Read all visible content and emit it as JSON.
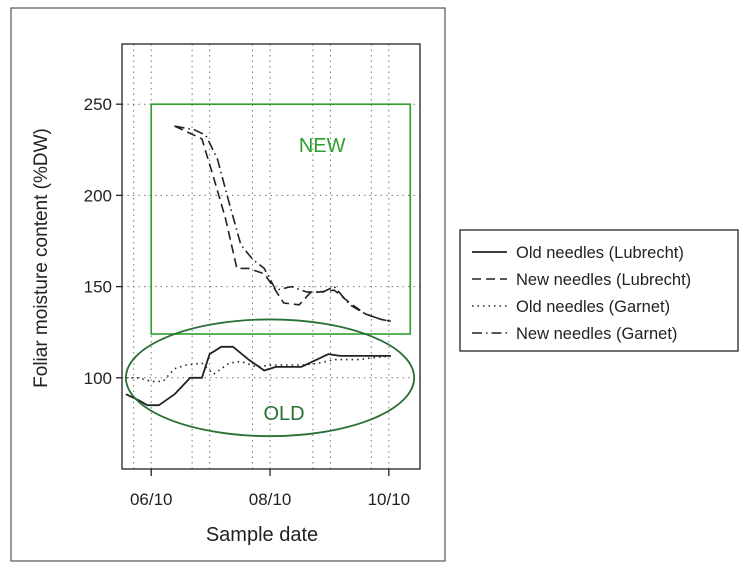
{
  "chart_data": {
    "type": "line",
    "xlabel": "Sample date",
    "ylabel": "Foliar moisture content (%DW)",
    "x_ticks": [
      "06/10",
      "08/10",
      "10/10"
    ],
    "y_ticks": [
      100,
      150,
      200,
      250
    ],
    "xlim": [
      "05/26",
      "10/26"
    ],
    "ylim": [
      50,
      283
    ],
    "grid": true,
    "legend_position": "right",
    "series": [
      {
        "name": "Old needles (Lubrecht)",
        "style": "solid",
        "x": [
          "05/28",
          "06/03",
          "06/08",
          "06/14",
          "06/22",
          "06/30",
          "07/06",
          "07/10",
          "07/16",
          "07/22",
          "07/30",
          "08/03",
          "08/07",
          "08/13",
          "08/20",
          "08/26",
          "09/01",
          "09/09",
          "09/15",
          "09/21",
          "09/29",
          "10/05",
          "10/11"
        ],
        "values": [
          91,
          88,
          85,
          85,
          91,
          100,
          100,
          113,
          117,
          117,
          110,
          107,
          104,
          106,
          106,
          106,
          109,
          113,
          112,
          112,
          112,
          112,
          112
        ]
      },
      {
        "name": "New needles (Lubrecht)",
        "style": "dashed",
        "x": [
          "06/22",
          "07/02",
          "07/06",
          "07/12",
          "07/18",
          "07/24",
          "07/30",
          "08/07",
          "08/11",
          "08/17",
          "08/25",
          "08/31",
          "09/04",
          "09/12",
          "09/20",
          "09/28",
          "10/06",
          "10/11"
        ],
        "values": [
          238,
          233,
          231,
          210,
          188,
          160,
          160,
          157,
          151,
          141,
          140,
          147,
          147,
          148,
          141,
          135,
          132,
          131
        ]
      },
      {
        "name": "Old needles (Garnet)",
        "style": "dotted",
        "x": [
          "05/28",
          "06/03",
          "06/10",
          "06/16",
          "06/22",
          "06/28",
          "07/06",
          "07/12",
          "07/20",
          "07/26",
          "08/03",
          "08/11",
          "08/19",
          "08/27",
          "09/04",
          "09/12",
          "09/18",
          "09/24",
          "10/02",
          "10/11"
        ],
        "values": [
          100,
          100,
          98,
          98,
          105,
          107,
          108,
          102,
          108,
          109,
          106,
          107,
          107,
          107,
          108,
          110,
          110,
          110,
          111,
          112
        ]
      },
      {
        "name": "New needles (Garnet)",
        "style": "dashdot",
        "x": [
          "06/22",
          "07/02",
          "07/08",
          "07/14",
          "07/20",
          "07/26",
          "08/01",
          "08/07",
          "08/13",
          "08/21",
          "08/29",
          "09/06",
          "09/12",
          "09/20",
          "09/28",
          "10/06",
          "10/11"
        ],
        "values": [
          238,
          236,
          233,
          220,
          196,
          173,
          165,
          160,
          148,
          150,
          147,
          147,
          150,
          140,
          135,
          132,
          131
        ]
      }
    ],
    "annotations": [
      {
        "text": "NEW",
        "shape": "rectangle",
        "color": "#2ca02c",
        "x_range": [
          "06/10",
          "10/21"
        ],
        "y_range": [
          124,
          250
        ]
      },
      {
        "text": "OLD",
        "shape": "ellipse",
        "color": "#2a6f36",
        "x_center": "08/10",
        "y_center": 100,
        "x_halfwidth_days": 74,
        "y_halfwidth": 32
      }
    ]
  }
}
